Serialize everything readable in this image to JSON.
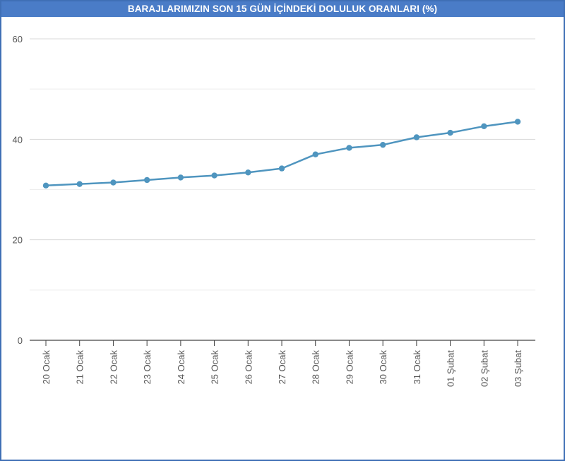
{
  "chart_data": {
    "type": "line",
    "title": "BARAJLARIMIZIN SON 15 GÜN İÇİNDEKİ DOLULUK ORANLARI (%)",
    "xlabel": "",
    "ylabel": "",
    "categories": [
      "20 Ocak",
      "21 Ocak",
      "22 Ocak",
      "23 Ocak",
      "24 Ocak",
      "25 Ocak",
      "26 Ocak",
      "27 Ocak",
      "28 Ocak",
      "29 Ocak",
      "30 Ocak",
      "31 Ocak",
      "01 Şubat",
      "02 Şubat",
      "03 Şubat"
    ],
    "series": [
      {
        "values": [
          30.8,
          31.1,
          31.4,
          31.9,
          32.4,
          32.8,
          33.4,
          34.2,
          37.0,
          38.3,
          38.9,
          40.4,
          41.3,
          42.6,
          43.5
        ]
      }
    ],
    "ylim": [
      0,
      60
    ],
    "yticks": [
      "0",
      "20",
      "40",
      "60"
    ],
    "grid": true,
    "line_color": "#4f95bf"
  }
}
